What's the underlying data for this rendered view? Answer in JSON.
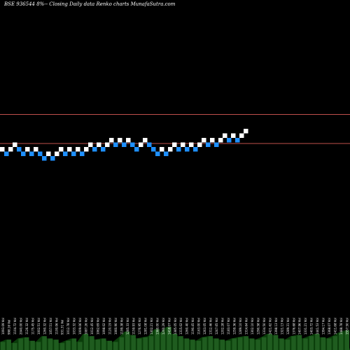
{
  "header": {
    "title": "BSE 936544  8%-- Closing Daily data  Renko  charts MunafaSutra.com"
  },
  "colors": {
    "background": "#000000",
    "up_brick": "#ffffff",
    "down_brick": "#1e90ff",
    "reference_line": "#c0504d",
    "volume_fill": "#0a3d0a",
    "volume_peak": "#1f5c1f"
  },
  "chart_data": {
    "type": "renko",
    "title": "BSE 936544  8%-- Closing Daily data  Renko  charts MunafaSutra.com",
    "brick_size_pct": 8,
    "grid": false,
    "legend": "none",
    "reference_levels": [
      7,
      0
    ],
    "bricks": [
      {
        "level": 0,
        "dir": "up"
      },
      {
        "level": -1,
        "dir": "down"
      },
      {
        "level": 0,
        "dir": "up"
      },
      {
        "level": 1,
        "dir": "up"
      },
      {
        "level": 0,
        "dir": "down"
      },
      {
        "level": -1,
        "dir": "down"
      },
      {
        "level": 0,
        "dir": "up"
      },
      {
        "level": -1,
        "dir": "down"
      },
      {
        "level": 0,
        "dir": "up"
      },
      {
        "level": -1,
        "dir": "down"
      },
      {
        "level": -2,
        "dir": "down"
      },
      {
        "level": -1,
        "dir": "up"
      },
      {
        "level": -2,
        "dir": "down"
      },
      {
        "level": -1,
        "dir": "up"
      },
      {
        "level": 0,
        "dir": "up"
      },
      {
        "level": -1,
        "dir": "down"
      },
      {
        "level": 0,
        "dir": "up"
      },
      {
        "level": -1,
        "dir": "down"
      },
      {
        "level": 0,
        "dir": "up"
      },
      {
        "level": -1,
        "dir": "down"
      },
      {
        "level": 0,
        "dir": "up"
      },
      {
        "level": 1,
        "dir": "up"
      },
      {
        "level": 0,
        "dir": "down"
      },
      {
        "level": 1,
        "dir": "up"
      },
      {
        "level": 0,
        "dir": "down"
      },
      {
        "level": 1,
        "dir": "up"
      },
      {
        "level": 2,
        "dir": "up"
      },
      {
        "level": 1,
        "dir": "down"
      },
      {
        "level": 2,
        "dir": "up"
      },
      {
        "level": 1,
        "dir": "down"
      },
      {
        "level": 2,
        "dir": "up"
      },
      {
        "level": 1,
        "dir": "down"
      },
      {
        "level": 0,
        "dir": "down"
      },
      {
        "level": 1,
        "dir": "up"
      },
      {
        "level": 2,
        "dir": "up"
      },
      {
        "level": 1,
        "dir": "down"
      },
      {
        "level": 0,
        "dir": "down"
      },
      {
        "level": -1,
        "dir": "down"
      },
      {
        "level": 0,
        "dir": "up"
      },
      {
        "level": -1,
        "dir": "down"
      },
      {
        "level": 0,
        "dir": "up"
      },
      {
        "level": 1,
        "dir": "up"
      },
      {
        "level": 0,
        "dir": "down"
      },
      {
        "level": 1,
        "dir": "up"
      },
      {
        "level": 0,
        "dir": "down"
      },
      {
        "level": 1,
        "dir": "up"
      },
      {
        "level": 0,
        "dir": "down"
      },
      {
        "level": 1,
        "dir": "up"
      },
      {
        "level": 2,
        "dir": "up"
      },
      {
        "level": 1,
        "dir": "down"
      },
      {
        "level": 2,
        "dir": "up"
      },
      {
        "level": 1,
        "dir": "down"
      },
      {
        "level": 2,
        "dir": "up"
      },
      {
        "level": 3,
        "dir": "up"
      },
      {
        "level": 2,
        "dir": "down"
      },
      {
        "level": 3,
        "dir": "up"
      },
      {
        "level": 2,
        "dir": "down"
      },
      {
        "level": 3,
        "dir": "up"
      },
      {
        "level": 4,
        "dir": "up"
      }
    ],
    "volume_labels": [
      "1093.09 Vol",
      "998.16 Vol",
      "1104.72 Vol",
      "2040.00 Vol",
      "1126.32 Vol",
      "1175.45 Vol",
      "1002.51 Vol",
      "1260.32 Vol",
      "1057.51 Vol",
      "1100.06 Vol",
      "931.31 Vol",
      "1012.78 Vol",
      "1033.32 Vol",
      "1009.06 Vol",
      "1087.26 Vol",
      "1012.45 Vol",
      "1062.69 Vol",
      "1098.02 Vol",
      "1120.19 Vol",
      "1060.90 Vol",
      "1199.38 Vol",
      "1285.33 Vol",
      "1159.93 Vol",
      "1276.95 Vol",
      "1281.08 Vol",
      "1302.21 Vol",
      "1360.00 Vol",
      "1260.29 Vol",
      "1418.07 Vol",
      "1385.05 Vol",
      "1315.02 Vol",
      "1260.40 Vol",
      "1190.45 Vol",
      "1163.00 Vol",
      "1263.05 Vol",
      "1312.46 Vol",
      "1247.65 Vol",
      "1202.28 Vol",
      "1183.07 Vol",
      "1259.36 Vol",
      "1289.10 Vol",
      "1314.64 Vol",
      "1302.10 Vol",
      "1290.58 Vol",
      "1334.50 Vol",
      "1421.62 Vol",
      "1398.13 Vol",
      "1321.13 Vol",
      "1289.31 Vol",
      "1376.68 Vol",
      "1407.96 Vol",
      "1331.21 Vol",
      "1403.72 Vol",
      "1441.53 Vol",
      "1394.17 Vol",
      "1368.07 Vol",
      "1411.68 Vol",
      "1488.78 Vol",
      "1557.50 Vol"
    ],
    "volume_relative": [
      0.35,
      0.45,
      0.3,
      0.5,
      0.55,
      0.4,
      0.35,
      0.6,
      0.5,
      0.45,
      0.3,
      0.4,
      0.5,
      0.35,
      0.7,
      0.6,
      0.45,
      0.5,
      0.4,
      0.35,
      0.55,
      0.8,
      0.65,
      0.5,
      0.55,
      0.6,
      0.9,
      0.75,
      1.0,
      0.7,
      0.6,
      0.5,
      0.45,
      0.4,
      0.55,
      0.6,
      0.5,
      0.45,
      0.4,
      0.5,
      0.55,
      0.6,
      0.5,
      0.45,
      0.55,
      0.7,
      0.65,
      0.5,
      0.45,
      0.6,
      0.65,
      0.5,
      0.6,
      0.7,
      0.55,
      0.5,
      0.6,
      0.75,
      0.85
    ]
  }
}
